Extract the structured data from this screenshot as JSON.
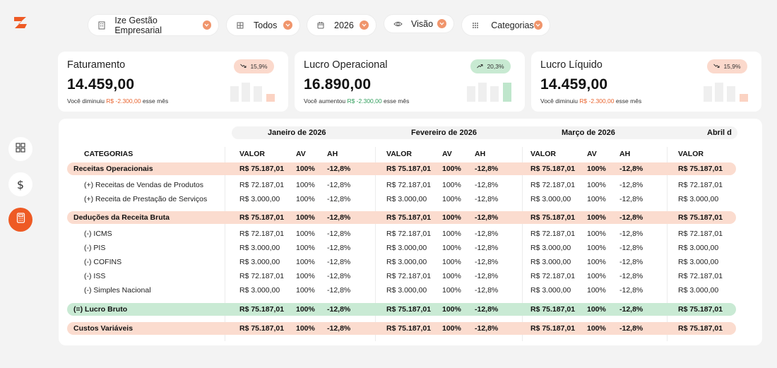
{
  "filters": [
    {
      "label": "Ize Gestão Empresarial",
      "icon": "building-icon"
    },
    {
      "label": "Todos",
      "icon": "people-icon"
    },
    {
      "label": "2026",
      "icon": "calendar-icon"
    },
    {
      "label": "Visão",
      "icon": "eye-icon"
    },
    {
      "label": "Categorias",
      "icon": "grid-icon"
    }
  ],
  "kpis": [
    {
      "title": "Faturamento",
      "value": "14.459,00",
      "badge": "15,9%",
      "trend": "down",
      "note_prefix": "Você diminuiu",
      "note_amount": "R$ -2.300,00",
      "note_suffix": "esse mês"
    },
    {
      "title": "Lucro Operacional",
      "value": "16.890,00",
      "badge": "20,3%",
      "trend": "up",
      "note_prefix": "Você aumentou",
      "note_amount": "R$ -2.300,00",
      "note_suffix": "esse mês"
    },
    {
      "title": "Lucro Líquido",
      "value": "14.459,00",
      "badge": "15,9%",
      "trend": "down",
      "note_prefix": "Você diminuiu",
      "note_amount": "R$ -2.300,00",
      "note_suffix": "esse mês"
    }
  ],
  "table": {
    "months": [
      "Janeiro de 2026",
      "Fevereiro de 2026",
      "Março de 2026",
      "Abril d"
    ],
    "category_header": "CATEGORIAS",
    "col_headers": [
      "VALOR",
      "AV",
      "AH"
    ],
    "rows": [
      {
        "label": "Receitas Operacionais",
        "style": "salmon",
        "bold": true,
        "cells": [
          "R$ 75.187,01",
          "100%",
          "-12,8%",
          "R$ 75.187,01",
          "100%",
          "-12,8%",
          "R$ 75.187,01",
          "100%",
          "-12,8%",
          "R$ 75.187,01"
        ]
      },
      {
        "label": "(+) Receitas de Vendas de Produtos",
        "style": "",
        "bold": false,
        "cells": [
          "R$ 72.187,01",
          "100%",
          "-12,8%",
          "R$ 72.187,01",
          "100%",
          "-12,8%",
          "R$ 72.187,01",
          "100%",
          "-12,8%",
          "R$ 72.187,01"
        ]
      },
      {
        "label": "(+) Receita de Prestação de Serviços",
        "style": "",
        "bold": false,
        "cells": [
          "R$ 3.000,00",
          "100%",
          "-12,8%",
          "R$ 3.000,00",
          "100%",
          "-12,8%",
          "R$ 3.000,00",
          "100%",
          "-12,8%",
          "R$ 3.000,00"
        ]
      },
      {
        "label": "Deduções da Receita Bruta",
        "style": "salmon",
        "bold": true,
        "cells": [
          "R$ 75.187,01",
          "100%",
          "-12,8%",
          "R$ 75.187,01",
          "100%",
          "-12,8%",
          "R$ 75.187,01",
          "100%",
          "-12,8%",
          "R$ 75.187,01"
        ]
      },
      {
        "label": "(-) ICMS",
        "style": "",
        "bold": false,
        "cells": [
          "R$ 72.187,01",
          "100%",
          "-12,8%",
          "R$ 72.187,01",
          "100%",
          "-12,8%",
          "R$ 72.187,01",
          "100%",
          "-12,8%",
          "R$ 72.187,01"
        ]
      },
      {
        "label": "(-) PIS",
        "style": "",
        "bold": false,
        "cells": [
          "R$ 3.000,00",
          "100%",
          "-12,8%",
          "R$ 3.000,00",
          "100%",
          "-12,8%",
          "R$ 3.000,00",
          "100%",
          "-12,8%",
          "R$ 3.000,00"
        ]
      },
      {
        "label": "(-) COFINS",
        "style": "",
        "bold": false,
        "cells": [
          "R$ 3.000,00",
          "100%",
          "-12,8%",
          "R$ 3.000,00",
          "100%",
          "-12,8%",
          "R$ 3.000,00",
          "100%",
          "-12,8%",
          "R$ 3.000,00"
        ]
      },
      {
        "label": "(-) ISS",
        "style": "",
        "bold": false,
        "cells": [
          "R$ 72.187,01",
          "100%",
          "-12,8%",
          "R$ 72.187,01",
          "100%",
          "-12,8%",
          "R$ 72.187,01",
          "100%",
          "-12,8%",
          "R$ 72.187,01"
        ]
      },
      {
        "label": "(-) Simples Nacional",
        "style": "",
        "bold": false,
        "cells": [
          "R$ 3.000,00",
          "100%",
          "-12,8%",
          "R$ 3.000,00",
          "100%",
          "-12,8%",
          "R$ 3.000,00",
          "100%",
          "-12,8%",
          "R$ 3.000,00"
        ]
      },
      {
        "label": "(=) Lucro Bruto",
        "style": "green",
        "bold": true,
        "cells": [
          "R$ 75.187,01",
          "100%",
          "-12,8%",
          "R$ 75.187,01",
          "100%",
          "-12,8%",
          "R$ 75.187,01",
          "100%",
          "-12,8%",
          "R$ 75.187,01"
        ]
      },
      {
        "label": "Custos Variáveis",
        "style": "salmon",
        "bold": true,
        "cells": [
          "R$ 75.187,01",
          "100%",
          "-12,8%",
          "R$ 75.187,01",
          "100%",
          "-12,8%",
          "R$ 75.187,01",
          "100%",
          "-12,8%",
          "R$ 75.187,01"
        ]
      }
    ]
  },
  "sidebar": [
    {
      "icon": "dashboard-icon",
      "active": false
    },
    {
      "icon": "dollar-icon",
      "active": false
    },
    {
      "icon": "calculator-icon",
      "active": true
    }
  ],
  "colors": {
    "accent": "#ee5a24",
    "negative": "#e9642f",
    "positive": "#2f9e5b",
    "row_salmon": "#fbdccf",
    "row_green": "#c9ead4"
  }
}
